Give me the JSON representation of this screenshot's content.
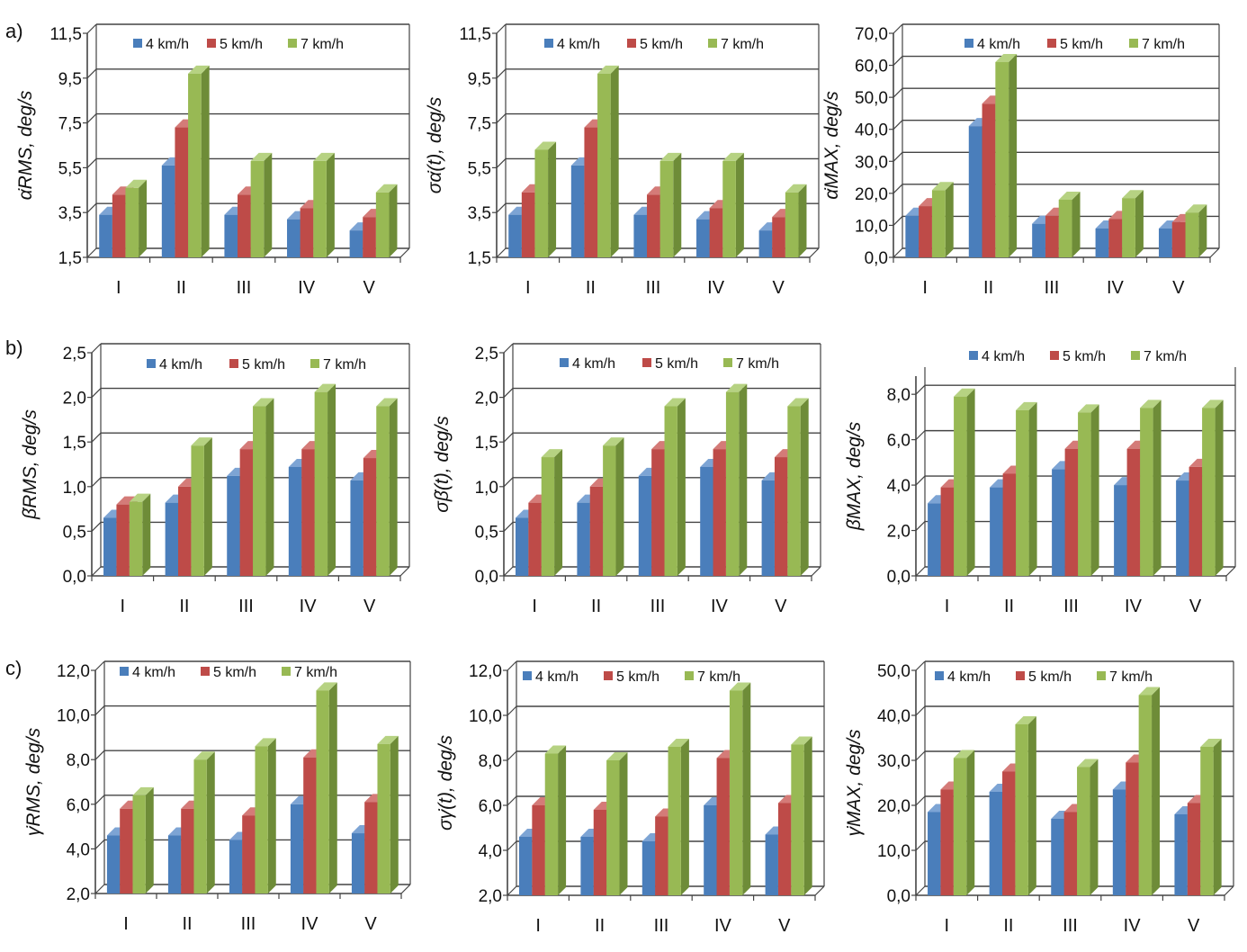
{
  "colors": {
    "s4": "#4a7ebb",
    "s5": "#be4b48",
    "s7": "#98b954",
    "grid": "#444444"
  },
  "legend": [
    "4 km/h",
    "5 km/h",
    "7 km/h"
  ],
  "row_labels": [
    "a)",
    "b)",
    "c)"
  ],
  "chart_data": [
    {
      "type": "bar",
      "row": "a)",
      "ylabel": "α̇RMS, deg/s",
      "categories": [
        "I",
        "II",
        "III",
        "IV",
        "V"
      ],
      "yticks": [
        "1,5",
        "3,5",
        "5,5",
        "7,5",
        "9,5",
        "11,5"
      ],
      "ylim": [
        1.5,
        11.5
      ],
      "series": [
        {
          "name": "4 km/h",
          "values": [
            3.4,
            5.6,
            3.4,
            3.2,
            2.7
          ]
        },
        {
          "name": "5 km/h",
          "values": [
            4.3,
            7.3,
            4.3,
            3.7,
            3.3
          ]
        },
        {
          "name": "7 km/h",
          "values": [
            4.6,
            9.7,
            5.8,
            5.8,
            4.4
          ]
        }
      ]
    },
    {
      "type": "bar",
      "row": "a)",
      "ylabel": "σα̇(t), deg/s",
      "categories": [
        "I",
        "II",
        "III",
        "IV",
        "V"
      ],
      "yticks": [
        "1,5",
        "3,5",
        "5,5",
        "7,5",
        "9,5",
        "11,5"
      ],
      "ylim": [
        1.5,
        11.5
      ],
      "series": [
        {
          "name": "4 km/h",
          "values": [
            3.4,
            5.6,
            3.4,
            3.2,
            2.7
          ]
        },
        {
          "name": "5 km/h",
          "values": [
            4.4,
            7.3,
            4.3,
            3.7,
            3.3
          ]
        },
        {
          "name": "7 km/h",
          "values": [
            6.3,
            9.7,
            5.8,
            5.8,
            4.4
          ]
        }
      ]
    },
    {
      "type": "bar",
      "row": "a)",
      "ylabel": "α̇MAX, deg/s",
      "categories": [
        "I",
        "II",
        "III",
        "IV",
        "V"
      ],
      "yticks": [
        "0,0",
        "10,0",
        "20,0",
        "30,0",
        "40,0",
        "50,0",
        "60,0",
        "70,0"
      ],
      "ylim": [
        0,
        70
      ],
      "series": [
        {
          "name": "4 km/h",
          "values": [
            13,
            41,
            10.5,
            9,
            9
          ]
        },
        {
          "name": "5 km/h",
          "values": [
            16,
            48,
            13,
            12,
            11
          ]
        },
        {
          "name": "7 km/h",
          "values": [
            21,
            61,
            18,
            18.5,
            14
          ]
        }
      ]
    },
    {
      "type": "bar",
      "row": "b)",
      "ylabel": "β̇RMS, deg/s",
      "categories": [
        "I",
        "II",
        "III",
        "IV",
        "V"
      ],
      "yticks": [
        "0,0",
        "0,5",
        "1,0",
        "1,5",
        "2,0",
        "2,5"
      ],
      "ylim": [
        0,
        2.5
      ],
      "series": [
        {
          "name": "4 km/h",
          "values": [
            0.65,
            0.82,
            1.12,
            1.22,
            1.07
          ]
        },
        {
          "name": "5 km/h",
          "values": [
            0.8,
            1.0,
            1.42,
            1.42,
            1.32
          ]
        },
        {
          "name": "7 km/h",
          "values": [
            0.83,
            1.46,
            1.9,
            2.06,
            1.9
          ]
        }
      ]
    },
    {
      "type": "bar",
      "row": "b)",
      "ylabel": "σβ̇(t), deg/s",
      "categories": [
        "I",
        "II",
        "III",
        "IV",
        "V"
      ],
      "yticks": [
        "0,0",
        "0,5",
        "1,0",
        "1,5",
        "2,0",
        "2,5"
      ],
      "ylim": [
        0,
        2.5
      ],
      "series": [
        {
          "name": "4 km/h",
          "values": [
            0.65,
            0.82,
            1.12,
            1.22,
            1.07
          ]
        },
        {
          "name": "5 km/h",
          "values": [
            0.82,
            1.0,
            1.42,
            1.42,
            1.33
          ]
        },
        {
          "name": "7 km/h",
          "values": [
            1.33,
            1.46,
            1.9,
            2.06,
            1.9
          ]
        }
      ]
    },
    {
      "type": "bar",
      "row": "b)",
      "ylabel": "β̇MAX, deg/s",
      "categories": [
        "I",
        "II",
        "III",
        "IV",
        "V"
      ],
      "yticks": [
        "0,0",
        "2,0",
        "4,0",
        "6,0",
        "8,0"
      ],
      "ylim": [
        0,
        8.8
      ],
      "series": [
        {
          "name": "4 km/h",
          "values": [
            3.2,
            3.9,
            4.7,
            4.0,
            4.2
          ]
        },
        {
          "name": "5 km/h",
          "values": [
            3.9,
            4.5,
            5.6,
            5.6,
            4.8
          ]
        },
        {
          "name": "7 km/h",
          "values": [
            7.9,
            7.3,
            7.2,
            7.4,
            7.4
          ]
        }
      ]
    },
    {
      "type": "bar",
      "row": "c)",
      "ylabel": "γ̇RMS, deg/s",
      "categories": [
        "I",
        "II",
        "III",
        "IV",
        "V"
      ],
      "yticks": [
        "2,0",
        "4,0",
        "6,0",
        "8,0",
        "10,0",
        "12,0"
      ],
      "ylim": [
        2,
        12
      ],
      "series": [
        {
          "name": "4 km/h",
          "values": [
            4.6,
            4.6,
            4.4,
            6.0,
            4.7
          ]
        },
        {
          "name": "5 km/h",
          "values": [
            5.8,
            5.8,
            5.5,
            8.1,
            6.1
          ]
        },
        {
          "name": "7 km/h",
          "values": [
            6.4,
            8.0,
            8.6,
            11.1,
            8.7
          ]
        }
      ]
    },
    {
      "type": "bar",
      "row": "c)",
      "ylabel": "σγ̇(t), deg/s",
      "categories": [
        "I",
        "II",
        "III",
        "IV",
        "V"
      ],
      "yticks": [
        "2,0",
        "4,0",
        "6,0",
        "8,0",
        "10,0",
        "12,0"
      ],
      "ylim": [
        2,
        12
      ],
      "series": [
        {
          "name": "4 km/h",
          "values": [
            4.6,
            4.6,
            4.4,
            6.0,
            4.7
          ]
        },
        {
          "name": "5 km/h",
          "values": [
            6.0,
            5.8,
            5.5,
            8.1,
            6.1
          ]
        },
        {
          "name": "7 km/h",
          "values": [
            8.3,
            8.0,
            8.6,
            11.1,
            8.7
          ]
        }
      ]
    },
    {
      "type": "bar",
      "row": "c)",
      "ylabel": "γ̇MAX, deg/s",
      "categories": [
        "I",
        "II",
        "III",
        "IV",
        "V"
      ],
      "yticks": [
        "0,0",
        "10,0",
        "20,0",
        "30,0",
        "40,0",
        "50,0"
      ],
      "ylim": [
        0,
        50
      ],
      "series": [
        {
          "name": "4 km/h",
          "values": [
            18.5,
            23,
            17,
            23.5,
            18
          ]
        },
        {
          "name": "5 km/h",
          "values": [
            23.5,
            27.5,
            18.5,
            29.5,
            20.5
          ]
        },
        {
          "name": "7 km/h",
          "values": [
            30.5,
            38,
            28.5,
            44.5,
            33
          ]
        }
      ]
    }
  ]
}
